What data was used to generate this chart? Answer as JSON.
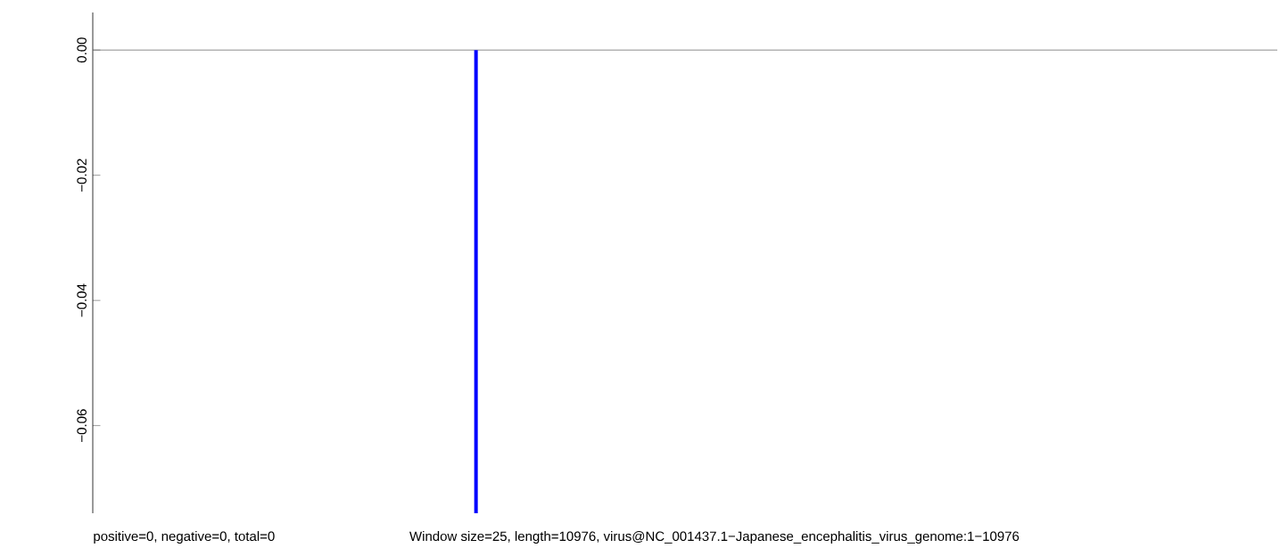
{
  "chart_data": {
    "type": "bar",
    "categories": [
      null,
      null,
      null,
      null,
      null,
      null,
      null,
      null,
      null,
      null,
      null,
      null,
      null,
      null,
      null,
      null,
      null
    ],
    "values": [
      null,
      null,
      null,
      null,
      null,
      -0.074,
      null,
      null,
      null,
      null,
      null,
      null,
      null,
      null,
      null,
      null,
      null
    ],
    "color": "#0000ff",
    "ylim": [
      -0.074,
      0.006
    ],
    "yticks": [
      {
        "value": -0.06,
        "label": "−0.06"
      },
      {
        "value": -0.04,
        "label": "−0.04"
      },
      {
        "value": -0.02,
        "label": "−0.02"
      },
      {
        "value": 0.0,
        "label": "0.00"
      }
    ],
    "tick_labels": "y",
    "grid": false,
    "ref_lines": [
      {
        "axis": "y",
        "value": 0,
        "color": "#6e6e6e"
      }
    ],
    "annotations": [
      "positive=0, negative=0, total=0",
      "Window size=25, length=10976, virus@NC_001437.1−Japanese_encephalitis_virus_genome:1−10976"
    ]
  }
}
